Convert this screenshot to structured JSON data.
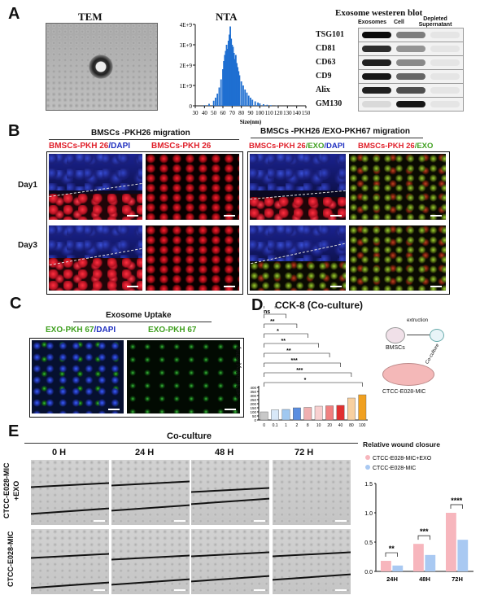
{
  "panels": {
    "A": "A",
    "B": "B",
    "C": "C",
    "D": "D",
    "E": "E"
  },
  "a": {
    "tem_title": "TEM",
    "nta_title": "NTA",
    "nta_yticks": [
      "4E+9",
      "3E+9",
      "2E+9",
      "1E+9",
      "0"
    ],
    "nta_xticks": [
      "30",
      "40",
      "50",
      "60",
      "70",
      "80",
      "90",
      "100",
      "110",
      "120",
      "130",
      "140",
      "150"
    ],
    "nta_xlabel": "Size(nm)",
    "wb_title": "Exosome westeren blot",
    "wb_cols": [
      "Exosomes",
      "Cell",
      "Depleted Supernatant"
    ],
    "wb_rows": [
      "TSG101",
      "CD81",
      "CD63",
      "CD9",
      "Alix",
      "GM130"
    ]
  },
  "b": {
    "left_title": "BMSCs -PKH26 migration",
    "right_title": "BMSCs -PKH26 /EXO-PKH67 migration",
    "col1a": "BMSCs-PKH 26",
    "col1b": "/DAPI",
    "col2": "BMSCs-PKH 26",
    "col3a": "BMSCs-PKH 26",
    "col3b": "/EXO",
    "col3c": "/DAPI",
    "col4a": "BMSCs-PKH 26",
    "col4b": "/EXO",
    "row1": "Day1",
    "row2": "Day3"
  },
  "c": {
    "title": "Exosome Uptake",
    "left_a": "EXO-PKH 67",
    "left_b": "/DAPI",
    "right": "EXO-PKH 67"
  },
  "d": {
    "title": "CCK-8 (Co-culture)",
    "ylabel": "Cell Viability(100%)",
    "diagram": {
      "extraction": "extruction",
      "bmsc": "BMSCs",
      "coculture": "Co-culture",
      "dish": "CTCC-E028-MIC"
    }
  },
  "e": {
    "header": "Co-culture",
    "times": [
      "0 H",
      "24 H",
      "48 H",
      "72 H"
    ],
    "row1": "CTCC-E028-MIC +EXO",
    "row2": "CTCC-E028-MIC",
    "graph_title": "Relative wound closure"
  },
  "chart_data": [
    {
      "type": "bar",
      "title": "NTA",
      "xlabel": "Size(nm)",
      "ylabel": "",
      "xlim": [
        30,
        150
      ],
      "ylim": [
        0,
        4000000000
      ],
      "x": [
        40,
        45,
        50,
        52,
        54,
        56,
        58,
        60,
        61,
        62,
        63,
        64,
        65,
        66,
        67,
        68,
        69,
        70,
        71,
        72,
        73,
        74,
        75,
        76,
        77,
        78,
        80,
        82,
        84,
        86,
        88,
        90,
        92,
        95,
        98,
        100,
        104,
        108,
        112,
        118
      ],
      "values": [
        30000000,
        100000000,
        250000000,
        400000000,
        600000000,
        900000000,
        1300000000,
        1800000000,
        2200000000,
        2500000000,
        2700000000,
        3000000000,
        2800000000,
        3200000000,
        3500000000,
        3900000000,
        3300000000,
        3000000000,
        2900000000,
        2600000000,
        2300000000,
        2500000000,
        2100000000,
        1900000000,
        1700000000,
        1500000000,
        1200000000,
        1000000000,
        800000000,
        650000000,
        500000000,
        400000000,
        300000000,
        220000000,
        160000000,
        120000000,
        80000000,
        50000000,
        30000000,
        10000000
      ],
      "colors": {
        "bar": "#1f6fd1"
      }
    },
    {
      "type": "bar",
      "title": "CCK-8 (Co-culture)",
      "ylabel": "Cell Viability(100%)",
      "categories": [
        "0",
        "0.1",
        "1",
        "2",
        "8",
        "10",
        "20",
        "40",
        "80",
        "100"
      ],
      "values": [
        100,
        125,
        130,
        150,
        155,
        170,
        175,
        180,
        270,
        310
      ],
      "ylim": [
        0,
        400
      ],
      "yticks": [
        "0",
        "50",
        "100",
        "150",
        "200",
        "250",
        "300",
        "350",
        "400"
      ],
      "significance": [
        "*",
        "ns",
        "**",
        "*",
        "**",
        "**",
        "***",
        "***",
        "*"
      ],
      "colors": [
        "#c8c8c8",
        "#d8e8f8",
        "#a0c8f0",
        "#5a8ee0",
        "#f0b0b0",
        "#f8d0d0",
        "#f08080",
        "#e03030",
        "#f8d0a0",
        "#f0a020"
      ]
    },
    {
      "type": "bar",
      "title": "Relative wound closure",
      "categories": [
        "24H",
        "48H",
        "72H"
      ],
      "series": [
        {
          "name": "CTCC-E028-MIC+EXO",
          "values": [
            0.18,
            0.47,
            1.0
          ],
          "color": "#f7b6bd"
        },
        {
          "name": "CTCC-E028-MIC",
          "values": [
            0.1,
            0.28,
            0.54
          ],
          "color": "#a9c9f2"
        }
      ],
      "ylim": [
        0,
        1.5
      ],
      "yticks": [
        "0.0",
        "0.5",
        "1.0",
        "1.5"
      ],
      "significance": [
        "**",
        "***",
        "****"
      ]
    }
  ]
}
